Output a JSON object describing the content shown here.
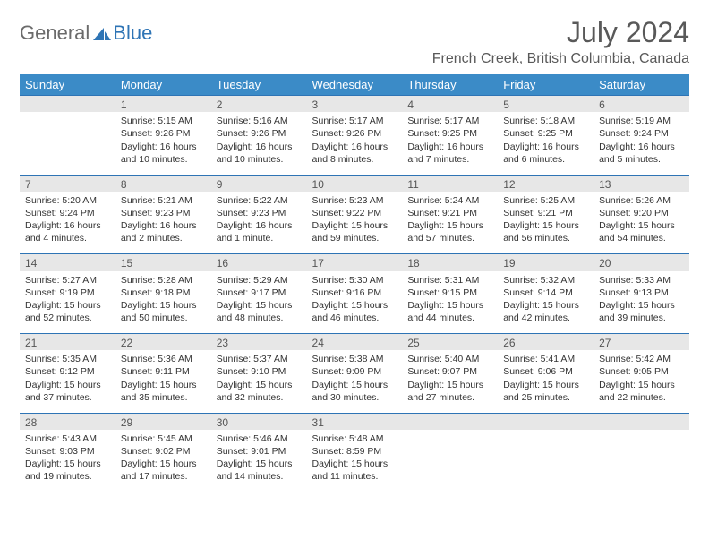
{
  "logo": {
    "part1": "General",
    "part2": "Blue"
  },
  "title": "July 2024",
  "location": "French Creek, British Columbia, Canada",
  "colors": {
    "header_bg": "#3b8bc7",
    "header_text": "#ffffff",
    "border": "#2e74b5",
    "daynum_bg": "#e7e7e7",
    "text": "#333333",
    "title_color": "#595959"
  },
  "weekdays": [
    "Sunday",
    "Monday",
    "Tuesday",
    "Wednesday",
    "Thursday",
    "Friday",
    "Saturday"
  ],
  "weeks": [
    {
      "nums": [
        "",
        "1",
        "2",
        "3",
        "4",
        "5",
        "6"
      ],
      "cells": [
        "",
        "Sunrise: 5:15 AM\nSunset: 9:26 PM\nDaylight: 16 hours and 10 minutes.",
        "Sunrise: 5:16 AM\nSunset: 9:26 PM\nDaylight: 16 hours and 10 minutes.",
        "Sunrise: 5:17 AM\nSunset: 9:26 PM\nDaylight: 16 hours and 8 minutes.",
        "Sunrise: 5:17 AM\nSunset: 9:25 PM\nDaylight: 16 hours and 7 minutes.",
        "Sunrise: 5:18 AM\nSunset: 9:25 PM\nDaylight: 16 hours and 6 minutes.",
        "Sunrise: 5:19 AM\nSunset: 9:24 PM\nDaylight: 16 hours and 5 minutes."
      ]
    },
    {
      "nums": [
        "7",
        "8",
        "9",
        "10",
        "11",
        "12",
        "13"
      ],
      "cells": [
        "Sunrise: 5:20 AM\nSunset: 9:24 PM\nDaylight: 16 hours and 4 minutes.",
        "Sunrise: 5:21 AM\nSunset: 9:23 PM\nDaylight: 16 hours and 2 minutes.",
        "Sunrise: 5:22 AM\nSunset: 9:23 PM\nDaylight: 16 hours and 1 minute.",
        "Sunrise: 5:23 AM\nSunset: 9:22 PM\nDaylight: 15 hours and 59 minutes.",
        "Sunrise: 5:24 AM\nSunset: 9:21 PM\nDaylight: 15 hours and 57 minutes.",
        "Sunrise: 5:25 AM\nSunset: 9:21 PM\nDaylight: 15 hours and 56 minutes.",
        "Sunrise: 5:26 AM\nSunset: 9:20 PM\nDaylight: 15 hours and 54 minutes."
      ]
    },
    {
      "nums": [
        "14",
        "15",
        "16",
        "17",
        "18",
        "19",
        "20"
      ],
      "cells": [
        "Sunrise: 5:27 AM\nSunset: 9:19 PM\nDaylight: 15 hours and 52 minutes.",
        "Sunrise: 5:28 AM\nSunset: 9:18 PM\nDaylight: 15 hours and 50 minutes.",
        "Sunrise: 5:29 AM\nSunset: 9:17 PM\nDaylight: 15 hours and 48 minutes.",
        "Sunrise: 5:30 AM\nSunset: 9:16 PM\nDaylight: 15 hours and 46 minutes.",
        "Sunrise: 5:31 AM\nSunset: 9:15 PM\nDaylight: 15 hours and 44 minutes.",
        "Sunrise: 5:32 AM\nSunset: 9:14 PM\nDaylight: 15 hours and 42 minutes.",
        "Sunrise: 5:33 AM\nSunset: 9:13 PM\nDaylight: 15 hours and 39 minutes."
      ]
    },
    {
      "nums": [
        "21",
        "22",
        "23",
        "24",
        "25",
        "26",
        "27"
      ],
      "cells": [
        "Sunrise: 5:35 AM\nSunset: 9:12 PM\nDaylight: 15 hours and 37 minutes.",
        "Sunrise: 5:36 AM\nSunset: 9:11 PM\nDaylight: 15 hours and 35 minutes.",
        "Sunrise: 5:37 AM\nSunset: 9:10 PM\nDaylight: 15 hours and 32 minutes.",
        "Sunrise: 5:38 AM\nSunset: 9:09 PM\nDaylight: 15 hours and 30 minutes.",
        "Sunrise: 5:40 AM\nSunset: 9:07 PM\nDaylight: 15 hours and 27 minutes.",
        "Sunrise: 5:41 AM\nSunset: 9:06 PM\nDaylight: 15 hours and 25 minutes.",
        "Sunrise: 5:42 AM\nSunset: 9:05 PM\nDaylight: 15 hours and 22 minutes."
      ]
    },
    {
      "nums": [
        "28",
        "29",
        "30",
        "31",
        "",
        "",
        ""
      ],
      "cells": [
        "Sunrise: 5:43 AM\nSunset: 9:03 PM\nDaylight: 15 hours and 19 minutes.",
        "Sunrise: 5:45 AM\nSunset: 9:02 PM\nDaylight: 15 hours and 17 minutes.",
        "Sunrise: 5:46 AM\nSunset: 9:01 PM\nDaylight: 15 hours and 14 minutes.",
        "Sunrise: 5:48 AM\nSunset: 8:59 PM\nDaylight: 15 hours and 11 minutes.",
        "",
        "",
        ""
      ]
    }
  ]
}
